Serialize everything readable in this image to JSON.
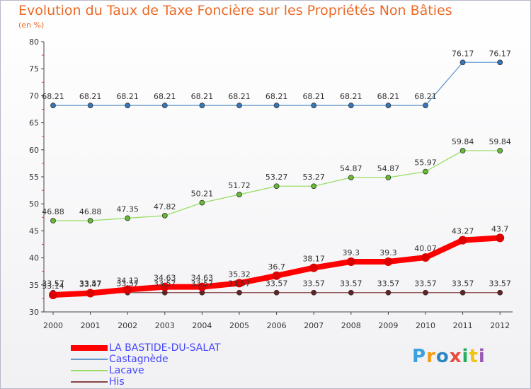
{
  "header": {
    "title": "Evolution du Taux de Taxe Foncière sur les Propriétés Non Bâties",
    "subtitle": "(en %)"
  },
  "chart_data": {
    "type": "line",
    "title": "Evolution du Taux de Taxe Foncière sur les Propriétés Non Bâties",
    "ylabel": "(en %)",
    "xlabel": "",
    "ylim": [
      30,
      80
    ],
    "yticks": [
      30,
      35,
      40,
      45,
      50,
      55,
      60,
      65,
      70,
      75,
      80
    ],
    "grid": false,
    "legend": "bottom-left",
    "categories": [
      "2000",
      "2001",
      "2002",
      "2003",
      "2004",
      "2005",
      "2006",
      "2007",
      "2008",
      "2009",
      "2010",
      "2011",
      "2012"
    ],
    "series": [
      {
        "name": "LA BASTIDE-DU-SALAT",
        "color": "#ff0000",
        "values": [
          33.14,
          33.47,
          34.12,
          34.63,
          34.63,
          35.32,
          36.7,
          38.17,
          39.3,
          39.3,
          40.07,
          43.27,
          43.7
        ],
        "labels": [
          "33.14",
          "33.47",
          "34.12",
          "34.63",
          "34.63",
          "35.32",
          "36.7",
          "38.17",
          "39.3",
          "39.3",
          "40.07",
          "43.27",
          "43.7"
        ]
      },
      {
        "name": "Castagnède",
        "color": "#6699cc",
        "values": [
          68.21,
          68.21,
          68.21,
          68.21,
          68.21,
          68.21,
          68.21,
          68.21,
          68.21,
          68.21,
          68.21,
          76.17,
          76.17
        ],
        "labels": [
          "68.21",
          "68.21",
          "68.21",
          "68.21",
          "68.21",
          "68.21",
          "68.21",
          "68.21",
          "68.21",
          "68.21",
          "68.21",
          "76.17",
          "76.17"
        ]
      },
      {
        "name": "Lacave",
        "color": "#99dd66",
        "values": [
          46.88,
          46.88,
          47.35,
          47.82,
          50.21,
          51.72,
          53.27,
          53.27,
          54.87,
          54.87,
          55.97,
          59.84,
          59.84
        ],
        "labels": [
          "46.88",
          "46.88",
          "47.35",
          "47.82",
          "50.21",
          "51.72",
          "53.27",
          "53.27",
          "54.87",
          "54.87",
          "55.97",
          "59.84",
          "59.84"
        ]
      },
      {
        "name": "His",
        "color": "#884444",
        "values": [
          33.57,
          33.57,
          33.57,
          33.57,
          33.57,
          33.57,
          33.57,
          33.57,
          33.57,
          33.57,
          33.57,
          33.57,
          33.57
        ],
        "labels": [
          "33.57",
          "33.57",
          "33.57",
          "33.57",
          "33.57",
          "33.57",
          "33.57",
          "33.57",
          "33.57",
          "33.57",
          "33.57",
          "33.57",
          "33.57"
        ]
      }
    ]
  },
  "logo": {
    "letters": [
      "P",
      "r",
      "o",
      "x",
      "i",
      "t",
      "i"
    ],
    "colors": [
      "#3aa0e0",
      "#f39c12",
      "#2e86c1",
      "#e74c3c",
      "#27ae60",
      "#f1c40f",
      "#9b59b6"
    ]
  }
}
